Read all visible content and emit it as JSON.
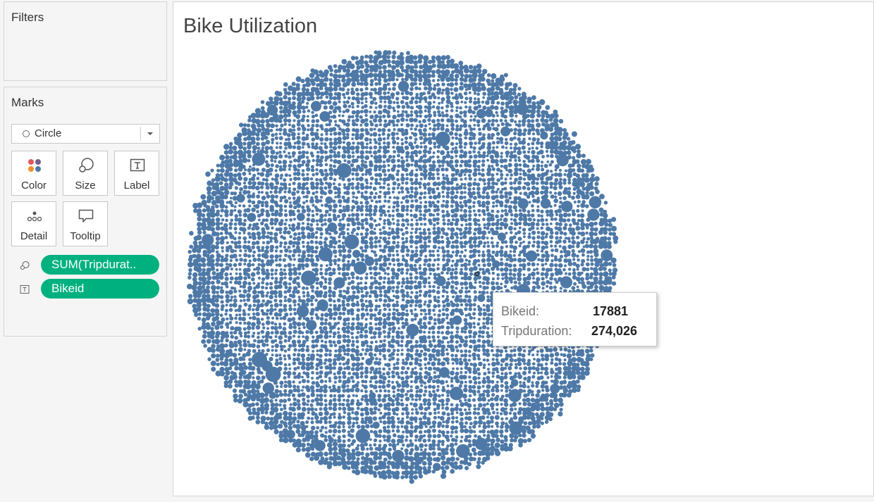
{
  "filters_panel": {
    "title": "Filters"
  },
  "marks_panel": {
    "title": "Marks",
    "mark_type": "Circle",
    "buttons": [
      {
        "label": "Color",
        "icon": "color-dots-icon"
      },
      {
        "label": "Size",
        "icon": "size-circles-icon"
      },
      {
        "label": "Label",
        "icon": "label-t-icon"
      },
      {
        "label": "Detail",
        "icon": "detail-dots-icon"
      },
      {
        "label": "Tooltip",
        "icon": "tooltip-bubble-icon"
      }
    ],
    "pills": [
      {
        "field": "SUM(Tripdurat..",
        "icon": "size-circles-icon"
      },
      {
        "field": "Bikeid",
        "icon": "label-t-icon"
      }
    ],
    "pill_color": "#00b180"
  },
  "chart_data": {
    "type": "packed-bubble",
    "title": "Bike Utilization",
    "mark_color": "#4e79a7",
    "size_measure": "SUM(Tripduration)",
    "detail": "Bikeid",
    "tooltip": {
      "bikeid_label": "Bikeid:",
      "bikeid_value": "17881",
      "tripduration_label": "Tripduration:",
      "tripduration_value": "274,026"
    }
  }
}
